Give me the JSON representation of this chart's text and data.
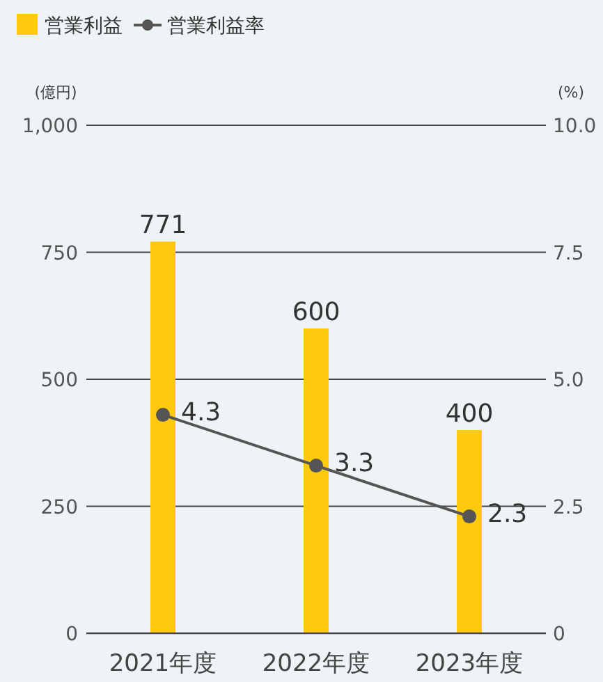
{
  "chart_data": {
    "type": "bar",
    "categories": [
      "2021年度",
      "2022年度",
      "2023年度"
    ],
    "ylabel": "(億円)",
    "y2label": "(%)",
    "ylim": [
      0,
      1000
    ],
    "yticks": [
      0,
      250,
      500,
      750,
      {
        "value": 1000,
        "label": "1,000"
      }
    ],
    "y2lim": [
      0,
      10
    ],
    "y2ticks": [
      0,
      {
        "value": 2.5,
        "label": "2.5"
      },
      {
        "value": 5,
        "label": "5.0"
      },
      {
        "value": 7.5,
        "label": "7.5"
      },
      {
        "value": 10,
        "label": "10.0"
      }
    ],
    "grid": "y",
    "legend": "top left",
    "data_labels": true,
    "series": [
      {
        "name": "営業利益",
        "color": "#ffc90e",
        "values": [
          771,
          600,
          400
        ]
      },
      {
        "name": "営業利益率",
        "type": "line",
        "axis": "y2",
        "color": "#555555",
        "marker": "circle",
        "values": [
          4.3,
          3.3,
          2.3
        ]
      }
    ]
  }
}
